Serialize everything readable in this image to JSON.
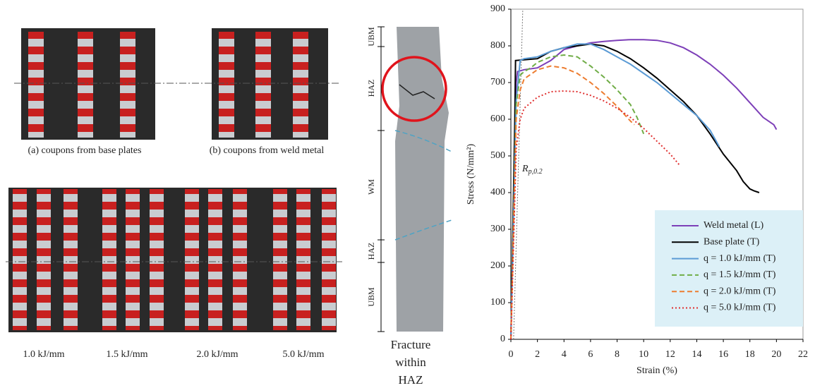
{
  "chart_data": {
    "type": "line",
    "xlabel": "Strain (%)",
    "ylabel": "Stress (N/mm²)",
    "xlim": [
      0,
      22
    ],
    "xticks": [
      0,
      2,
      4,
      6,
      8,
      10,
      12,
      14,
      16,
      18,
      20,
      22
    ],
    "ylim": [
      0,
      900
    ],
    "yticks": [
      0,
      100,
      200,
      300,
      400,
      500,
      600,
      700,
      800,
      900
    ],
    "legend": "lower-right",
    "annotation": {
      "text": "R",
      "subscript": "p,0.2"
    },
    "offset_line": {
      "x": [
        0.2,
        0.9
      ],
      "values": [
        0,
        900
      ]
    },
    "series": [
      {
        "name": "Weld metal (L)",
        "color": "#7d3fb8",
        "dash": "solid",
        "x": [
          0,
          0.4,
          0.5,
          1,
          2,
          3,
          4,
          5,
          6,
          7,
          8,
          9,
          10,
          11,
          12,
          13,
          14,
          15,
          16,
          17,
          18,
          19,
          19.8,
          20
        ],
        "values": [
          0,
          700,
          730,
          735,
          740,
          760,
          790,
          800,
          808,
          812,
          815,
          817,
          817,
          815,
          808,
          795,
          775,
          750,
          720,
          685,
          645,
          605,
          585,
          572
        ]
      },
      {
        "name": "Base plate (T)",
        "color": "#000000",
        "dash": "solid",
        "x": [
          0,
          0.3,
          0.35,
          1,
          2,
          3,
          4,
          5,
          6,
          7,
          8,
          9,
          10,
          11,
          12,
          13,
          14,
          15,
          16,
          17,
          17.5,
          18,
          18.3,
          18.7
        ],
        "values": [
          0,
          600,
          760,
          762,
          765,
          785,
          795,
          800,
          805,
          800,
          785,
          765,
          740,
          712,
          680,
          648,
          610,
          560,
          505,
          460,
          430,
          410,
          405,
          400
        ]
      },
      {
        "name": "q = 1.0 kJ/mm (T)",
        "color": "#5b9bd5",
        "dash": "solid",
        "x": [
          0,
          0.4,
          0.7,
          1,
          2,
          3,
          4,
          5,
          6,
          7,
          8,
          9,
          10,
          11,
          12,
          13,
          14,
          15,
          15.7
        ],
        "values": [
          0,
          650,
          760,
          765,
          770,
          785,
          795,
          805,
          805,
          790,
          770,
          750,
          725,
          700,
          670,
          640,
          610,
          570,
          525
        ]
      },
      {
        "name": "q = 1.5 kJ/mm (T)",
        "color": "#70ad47",
        "dash": "dashed",
        "x": [
          0,
          0.4,
          0.7,
          1,
          1.5,
          2,
          3,
          4,
          5,
          6,
          7,
          8,
          9,
          9.5,
          10
        ],
        "values": [
          0,
          640,
          720,
          730,
          740,
          755,
          770,
          775,
          770,
          745,
          715,
          680,
          640,
          605,
          560
        ]
      },
      {
        "name": "q = 2.0 kJ/mm (T)",
        "color": "#ed7d31",
        "dash": "dashed",
        "x": [
          0,
          0.4,
          0.7,
          1,
          2,
          3,
          4,
          5,
          6,
          7,
          8,
          9,
          9.3
        ],
        "values": [
          0,
          600,
          680,
          710,
          735,
          745,
          740,
          725,
          700,
          670,
          635,
          595,
          585
        ]
      },
      {
        "name": "q = 5.0 kJ/mm (T)",
        "color": "#e03030",
        "dash": "dotted",
        "x": [
          0,
          0.4,
          0.7,
          1,
          2,
          3,
          4,
          5,
          6,
          7,
          8,
          9,
          10,
          11,
          12,
          12.7
        ],
        "values": [
          0,
          520,
          600,
          630,
          660,
          675,
          677,
          675,
          665,
          650,
          630,
          605,
          575,
          540,
          505,
          475
        ]
      }
    ]
  },
  "photos": {
    "captions": [
      "(a) coupons from base plates",
      "(b) coupons from weld metal"
    ],
    "heat_inputs": [
      "1.0 kJ/mm",
      "1.5 kJ/mm",
      "2.0 kJ/mm",
      "5.0 kJ/mm"
    ],
    "zones": [
      "UBM",
      "HAZ",
      "WM",
      "HAZ",
      "UBM"
    ],
    "fracture_caption": [
      "Fracture",
      "within",
      "HAZ"
    ]
  }
}
